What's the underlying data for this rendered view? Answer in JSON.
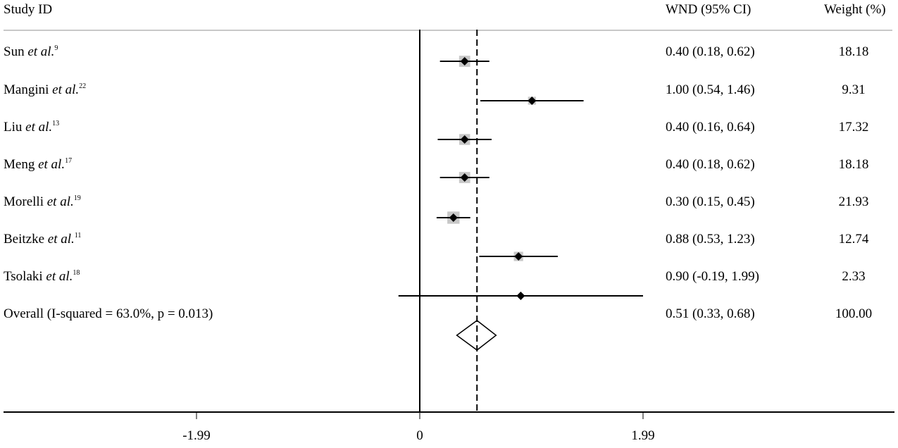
{
  "chart_data": {
    "type": "forest",
    "title": "",
    "columns": {
      "study": "Study ID",
      "effect": "WND (95% CI)",
      "weight": "Weight (%)"
    },
    "xaxis": {
      "ticks": [
        -1.99,
        0,
        1.99
      ],
      "tick_labels": [
        "-1.99",
        "0",
        "1.99"
      ],
      "range": [
        -3.73,
        4.24
      ],
      "null_line": 0
    },
    "pooled_line": 0.51,
    "studies": [
      {
        "name": "Sun",
        "etal": "et al.",
        "ref": "9",
        "est": 0.4,
        "lo": 0.18,
        "hi": 0.62,
        "ci_text": "0.40 (0.18, 0.62)",
        "weight": "18.18"
      },
      {
        "name": "Mangini",
        "etal": "et al.",
        "ref": "22",
        "est": 1.0,
        "lo": 0.54,
        "hi": 1.46,
        "ci_text": "1.00 (0.54, 1.46)",
        "weight": "9.31"
      },
      {
        "name": "Liu",
        "etal": "et al.",
        "ref": "13",
        "est": 0.4,
        "lo": 0.16,
        "hi": 0.64,
        "ci_text": "0.40 (0.16, 0.64)",
        "weight": "17.32"
      },
      {
        "name": "Meng",
        "etal": "et al.",
        "ref": "17",
        "est": 0.4,
        "lo": 0.18,
        "hi": 0.62,
        "ci_text": "0.40 (0.18, 0.62)",
        "weight": "18.18"
      },
      {
        "name": "Morelli",
        "etal": "et al.",
        "ref": "19",
        "est": 0.3,
        "lo": 0.15,
        "hi": 0.45,
        "ci_text": "0.30 (0.15, 0.45)",
        "weight": "21.93"
      },
      {
        "name": "Beitzke",
        "etal": "et al.",
        "ref": "11",
        "est": 0.88,
        "lo": 0.53,
        "hi": 1.23,
        "ci_text": "0.88 (0.53, 1.23)",
        "weight": "12.74"
      },
      {
        "name": "Tsolaki",
        "etal": "et al.",
        "ref": "18",
        "est": 0.9,
        "lo": -0.19,
        "hi": 1.99,
        "ci_text": "0.90 (-0.19, 1.99)",
        "weight": "2.33"
      }
    ],
    "overall": {
      "label": "Overall (I-squared = 63.0%, p = 0.013)",
      "est": 0.51,
      "lo": 0.33,
      "hi": 0.68,
      "ci_text": "0.51 (0.33, 0.68)",
      "weight": "100.00",
      "i_squared": "63.0%",
      "p": "0.013"
    },
    "colors": {
      "line": "#000000",
      "weight_box": "#c8c8c8",
      "rule": "#c8c8c8"
    }
  }
}
